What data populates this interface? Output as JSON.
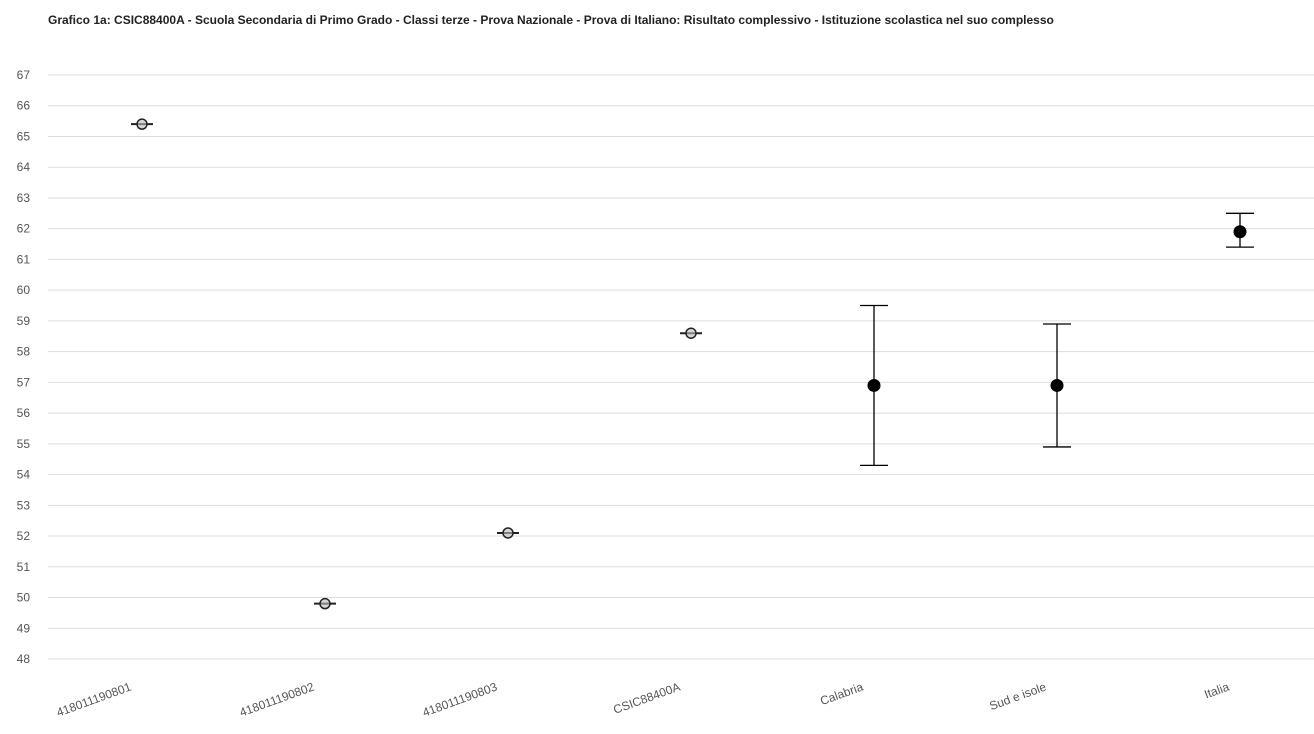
{
  "chart_data": {
    "type": "scatter",
    "title": "Grafico 1a: CSIC88400A - Scuola Secondaria di Primo Grado - Classi terze - Prova Nazionale - Prova di Italiano: Risultato complessivo - Istituzione scolastica nel suo complesso",
    "xlabel": "",
    "ylabel": "",
    "ylim": [
      48,
      67
    ],
    "yticks": [
      48,
      49,
      50,
      51,
      52,
      53,
      54,
      55,
      56,
      57,
      58,
      59,
      60,
      61,
      62,
      63,
      64,
      65,
      66,
      67
    ],
    "grid": true,
    "legend": "none",
    "categories": [
      "418011190801",
      "418011190802",
      "418011190803",
      "CSIC88400A",
      "Calabria",
      "Sud e isole",
      "Italia"
    ],
    "points": [
      {
        "category": "418011190801",
        "value": 65.4,
        "low": 65.4,
        "high": 65.4,
        "marker": "open"
      },
      {
        "category": "418011190802",
        "value": 49.8,
        "low": 49.8,
        "high": 49.8,
        "marker": "open"
      },
      {
        "category": "418011190803",
        "value": 52.1,
        "low": 52.1,
        "high": 52.1,
        "marker": "open"
      },
      {
        "category": "CSIC88400A",
        "value": 58.6,
        "low": 58.6,
        "high": 58.6,
        "marker": "open"
      },
      {
        "category": "Calabria",
        "value": 56.9,
        "low": 54.3,
        "high": 59.5,
        "marker": "filled"
      },
      {
        "category": "Sud e isole",
        "value": 56.9,
        "low": 54.9,
        "high": 58.9,
        "marker": "filled"
      },
      {
        "category": "Italia",
        "value": 61.9,
        "low": 61.4,
        "high": 62.5,
        "marker": "filled"
      }
    ],
    "colors": {
      "grid": "#dddddd",
      "marker": "#000000",
      "axis_text": "#555555"
    }
  }
}
